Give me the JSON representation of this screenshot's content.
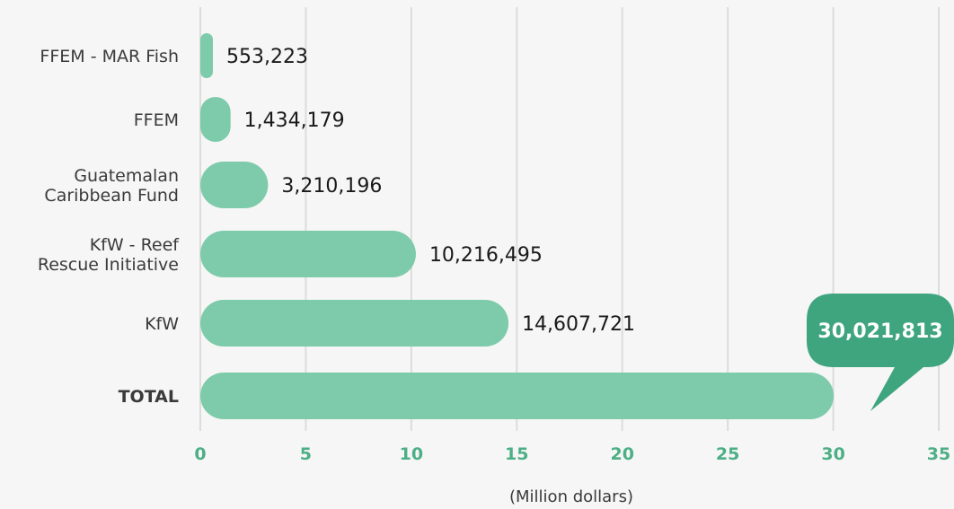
{
  "colors": {
    "bar": "#7ecbab",
    "callout": "#3fa57f",
    "tick": "#4caf85",
    "grid": "#dcdcdc",
    "background": "#f6f6f6"
  },
  "chart_data": {
    "type": "bar",
    "orientation": "horizontal",
    "categories": [
      "FFEM - MAR Fish",
      "FFEM",
      "Guatemalan Caribbean Fund",
      "KfW - Reef Rescue Initiative",
      "KfW",
      "TOTAL"
    ],
    "category_lines": [
      [
        "FFEM - MAR Fish"
      ],
      [
        "FFEM"
      ],
      [
        "Guatemalan",
        "Caribbean Fund"
      ],
      [
        "KfW - Reef",
        "Rescue Initiative"
      ],
      [
        "KfW"
      ],
      [
        "TOTAL"
      ]
    ],
    "values": [
      0.553223,
      1.434179,
      3.210196,
      10.216495,
      14.607721,
      30.021813
    ],
    "value_labels": [
      "553,223",
      "1,434,179",
      "3,210,196",
      "10,216,495",
      "14,607,721",
      "30,021,813"
    ],
    "xlabel": "(Million dollars)",
    "ylabel": "",
    "xlim": [
      0,
      35
    ],
    "xticks": [
      "0",
      "5",
      "10",
      "15",
      "20",
      "25",
      "30",
      "35"
    ],
    "grid": "vertical",
    "highlight": {
      "category": "TOTAL",
      "style": "callout"
    }
  }
}
